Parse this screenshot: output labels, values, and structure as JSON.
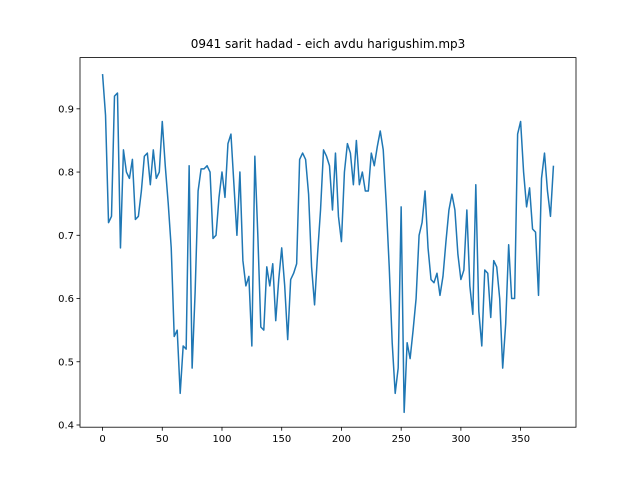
{
  "chart_data": {
    "type": "line",
    "title": "0941 sarit hadad - eich avdu harigushim.mp3",
    "series": [
      {
        "color": "#1f77b4",
        "x": [
          0,
          2.5,
          5,
          7.5,
          10,
          12.5,
          15,
          17.5,
          20,
          22.5,
          25,
          27.5,
          30,
          32.5,
          35,
          37.5,
          40,
          42.5,
          45,
          47.5,
          50,
          52.5,
          55,
          57.5,
          60,
          62.5,
          65,
          67.5,
          70,
          72.5,
          75,
          77.5,
          80,
          82.5,
          85,
          87.5,
          90,
          92.5,
          95,
          97.5,
          100,
          102.5,
          105,
          107.5,
          110,
          112.5,
          115,
          117.5,
          120,
          122.5,
          125,
          127.5,
          130,
          132.5,
          135,
          137.5,
          140,
          142.5,
          145,
          147.5,
          150,
          152.5,
          155,
          157.5,
          160,
          162.5,
          165,
          167.5,
          170,
          172.5,
          175,
          177.5,
          180,
          182.5,
          185,
          187.5,
          190,
          192.5,
          195,
          197.5,
          200,
          202.5,
          205,
          207.5,
          210,
          212.5,
          215,
          217.5,
          220,
          222.5,
          225,
          227.5,
          230,
          232.5,
          235,
          237.5,
          240,
          242.5,
          245,
          247.5,
          250,
          252.5,
          255,
          257.5,
          260,
          262.5,
          265,
          267.5,
          270,
          272.5,
          275,
          277.5,
          280,
          282.5,
          285,
          287.5,
          290,
          292.5,
          295,
          297.5,
          300,
          302.5,
          305,
          307.5,
          310,
          312.5,
          315,
          317.5,
          320,
          322.5,
          325,
          327.5,
          330,
          332.5,
          335,
          337.5,
          340,
          342.5,
          345,
          347.5,
          350,
          352.5,
          355,
          357.5,
          360,
          362.5,
          365,
          367.5,
          370,
          372.5,
          375,
          377.5
        ],
        "values": [
          0.955,
          0.89,
          0.72,
          0.73,
          0.92,
          0.925,
          0.68,
          0.835,
          0.8,
          0.79,
          0.82,
          0.725,
          0.73,
          0.77,
          0.825,
          0.83,
          0.78,
          0.835,
          0.79,
          0.8,
          0.88,
          0.81,
          0.75,
          0.68,
          0.54,
          0.55,
          0.45,
          0.525,
          0.52,
          0.81,
          0.49,
          0.61,
          0.77,
          0.805,
          0.805,
          0.81,
          0.8,
          0.695,
          0.7,
          0.76,
          0.8,
          0.76,
          0.845,
          0.86,
          0.78,
          0.7,
          0.8,
          0.66,
          0.62,
          0.635,
          0.525,
          0.825,
          0.7,
          0.555,
          0.55,
          0.65,
          0.62,
          0.655,
          0.565,
          0.63,
          0.68,
          0.62,
          0.535,
          0.63,
          0.64,
          0.655,
          0.82,
          0.83,
          0.82,
          0.765,
          0.65,
          0.59,
          0.67,
          0.74,
          0.835,
          0.825,
          0.81,
          0.74,
          0.83,
          0.73,
          0.69,
          0.8,
          0.845,
          0.83,
          0.78,
          0.85,
          0.78,
          0.8,
          0.77,
          0.77,
          0.83,
          0.81,
          0.84,
          0.865,
          0.835,
          0.75,
          0.65,
          0.53,
          0.45,
          0.49,
          0.745,
          0.42,
          0.53,
          0.505,
          0.55,
          0.6,
          0.7,
          0.72,
          0.77,
          0.68,
          0.63,
          0.625,
          0.64,
          0.605,
          0.635,
          0.69,
          0.74,
          0.765,
          0.74,
          0.67,
          0.63,
          0.645,
          0.74,
          0.62,
          0.575,
          0.78,
          0.58,
          0.525,
          0.645,
          0.64,
          0.57,
          0.66,
          0.65,
          0.6,
          0.49,
          0.56,
          0.685,
          0.6,
          0.6,
          0.86,
          0.88,
          0.8,
          0.745,
          0.775,
          0.71,
          0.705,
          0.605,
          0.79,
          0.83,
          0.77,
          0.73,
          0.81
        ]
      }
    ],
    "xlim": [
      -18.875,
      396.375
    ],
    "xticks": [
      0,
      50,
      100,
      150,
      200,
      250,
      300,
      350
    ],
    "ylim": [
      0.3965,
      0.981
    ],
    "yticks": [
      0.4,
      0.5,
      0.6,
      0.7,
      0.8,
      0.9
    ]
  }
}
